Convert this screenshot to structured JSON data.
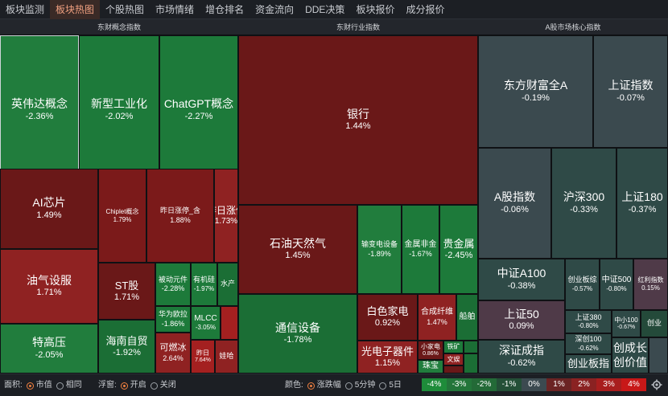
{
  "tabs": [
    "板块监测",
    "板块热图",
    "个股热图",
    "市场情绪",
    "增仓排名",
    "资金流向",
    "DDE决策",
    "板块报价",
    "成分报价"
  ],
  "active_tab": "板块热图",
  "panels": {
    "concept": {
      "title": "东财概念指数",
      "cells": [
        {
          "name": "英伟达概念",
          "pct": "-2.36%"
        },
        {
          "name": "新型工业化",
          "pct": "-2.02%"
        },
        {
          "name": "ChatGPT概念",
          "pct": "-2.27%"
        },
        {
          "name": "AI芯片",
          "pct": "1.49%"
        },
        {
          "name": "Chiplet概念",
          "pct": "1.79%"
        },
        {
          "name": "昨日涨停_含",
          "pct": "1.88%"
        },
        {
          "name": "昨日涨停",
          "pct": "1.73%"
        },
        {
          "name": "油气设服",
          "pct": "1.71%"
        },
        {
          "name": "ST股",
          "pct": "1.71%"
        },
        {
          "name": "被动元件",
          "pct": "-2.28%"
        },
        {
          "name": "有机硅",
          "pct": "-1.97%"
        },
        {
          "name": "水产",
          "pct": ""
        },
        {
          "name": "特高压",
          "pct": "-2.05%"
        },
        {
          "name": "海南自贸",
          "pct": "-1.92%"
        },
        {
          "name": "华为欧拉",
          "pct": "-1.86%"
        },
        {
          "name": "MLCC",
          "pct": "-3.05%"
        },
        {
          "name": "",
          "pct": ""
        },
        {
          "name": "可燃冰",
          "pct": "2.64%"
        },
        {
          "name": "昨日",
          "pct": "7.64%"
        },
        {
          "name": "娃哈",
          "pct": ""
        }
      ]
    },
    "industry": {
      "title": "东财行业指数",
      "cells": [
        {
          "name": "银行",
          "pct": "1.44%"
        },
        {
          "name": "石油天然气",
          "pct": "1.45%"
        },
        {
          "name": "输变电设备",
          "pct": "-1.89%"
        },
        {
          "name": "金属非金",
          "pct": "-1.67%"
        },
        {
          "name": "贵金属",
          "pct": "-2.45%"
        },
        {
          "name": "通信设备",
          "pct": "-1.78%"
        },
        {
          "name": "白色家电",
          "pct": "0.92%"
        },
        {
          "name": "合成纤维",
          "pct": "1.47%"
        },
        {
          "name": "船舶",
          "pct": ""
        },
        {
          "name": "光电子器件",
          "pct": "1.15%"
        },
        {
          "name": "小家电",
          "pct": "0.86%"
        },
        {
          "name": "铁矿",
          "pct": ""
        },
        {
          "name": "文娱",
          "pct": ""
        },
        {
          "name": "珠宝",
          "pct": ""
        }
      ]
    },
    "ashare": {
      "title": "A股市场核心指数",
      "cells": [
        {
          "name": "东方财富全A",
          "pct": "-0.19%"
        },
        {
          "name": "上证指数",
          "pct": "-0.07%"
        },
        {
          "name": "A股指数",
          "pct": "-0.06%"
        },
        {
          "name": "沪深300",
          "pct": "-0.33%"
        },
        {
          "name": "上证180",
          "pct": "-0.37%"
        },
        {
          "name": "中证A100",
          "pct": "-0.38%"
        },
        {
          "name": "创业板综",
          "pct": "-0.57%"
        },
        {
          "name": "中证500",
          "pct": "-0.80%"
        },
        {
          "name": "红利指数",
          "pct": "0.15%"
        },
        {
          "name": "上证50",
          "pct": "0.09%"
        },
        {
          "name": "上证380",
          "pct": "-0.80%"
        },
        {
          "name": "中小100",
          "pct": "-0.67%"
        },
        {
          "name": "创业",
          "pct": ""
        },
        {
          "name": "深创100",
          "pct": "-0.62%"
        },
        {
          "name": "深证成指",
          "pct": "-0.62%"
        },
        {
          "name": "创业板指",
          "pct": ""
        },
        {
          "name": "创成长",
          "pct": ""
        },
        {
          "name": "创价值",
          "pct": ""
        }
      ]
    }
  },
  "bottom": {
    "area_label": "面积:",
    "area_opt1": "市值",
    "area_opt2": "相同",
    "float_label": "浮窗:",
    "float_on": "开启",
    "float_off": "关闭",
    "color_label": "颜色:",
    "color_opt1": "涨跌幅",
    "color_opt2": "5分钟",
    "color_opt3": "5日",
    "legend": [
      "-4%",
      "-3%",
      "-2%",
      "-1%",
      "0%",
      "1%",
      "2%",
      "3%",
      "4%"
    ],
    "legend_colors": [
      "#1e8c3a",
      "#23753a",
      "#236a37",
      "#244f37",
      "#3c4a50",
      "#6b2424",
      "#8a2222",
      "#a81e1e",
      "#c81818"
    ]
  }
}
